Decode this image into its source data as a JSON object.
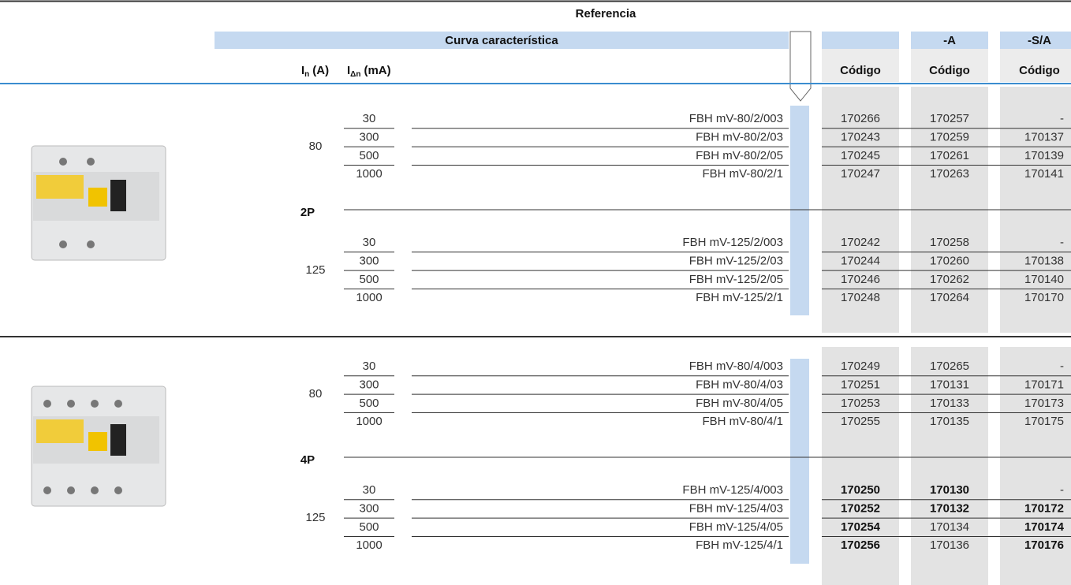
{
  "header": {
    "title": "Referencia",
    "curve": "Curva característica",
    "variants": [
      "-A",
      "-S/A"
    ],
    "in": {
      "symbol": "I",
      "sub": "n",
      "unit": "(A)"
    },
    "idn": {
      "symbol": "I",
      "sub": "Δn",
      "unit": "(mA)"
    },
    "code_labels": [
      "Código",
      "Código",
      "Código"
    ]
  },
  "sections": [
    {
      "poles": "2P",
      "groups": [
        {
          "in": "80",
          "rows": [
            {
              "ma": "30",
              "ref": "FBH mV-80/2/003",
              "codes": [
                "170266",
                "170257",
                "-"
              ]
            },
            {
              "ma": "300",
              "ref": "FBH mV-80/2/03",
              "codes": [
                "170243",
                "170259",
                "170137"
              ]
            },
            {
              "ma": "500",
              "ref": "FBH mV-80/2/05",
              "codes": [
                "170245",
                "170261",
                "170139"
              ]
            },
            {
              "ma": "1000",
              "ref": "FBH mV-80/2/1",
              "codes": [
                "170247",
                "170263",
                "170141"
              ]
            }
          ]
        },
        {
          "in": "125",
          "rows": [
            {
              "ma": "30",
              "ref": "FBH mV-125/2/003",
              "codes": [
                "170242",
                "170258",
                "-"
              ]
            },
            {
              "ma": "300",
              "ref": "FBH mV-125/2/03",
              "codes": [
                "170244",
                "170260",
                "170138"
              ]
            },
            {
              "ma": "500",
              "ref": "FBH mV-125/2/05",
              "codes": [
                "170246",
                "170262",
                "170140"
              ]
            },
            {
              "ma": "1000",
              "ref": "FBH mV-125/2/1",
              "codes": [
                "170248",
                "170264",
                "170170"
              ]
            }
          ]
        }
      ]
    },
    {
      "poles": "4P",
      "groups": [
        {
          "in": "80",
          "rows": [
            {
              "ma": "30",
              "ref": "FBH mV-80/4/003",
              "codes": [
                "170249",
                "170265",
                "-"
              ]
            },
            {
              "ma": "300",
              "ref": "FBH mV-80/4/03",
              "codes": [
                "170251",
                "170131",
                "170171"
              ]
            },
            {
              "ma": "500",
              "ref": "FBH mV-80/4/05",
              "codes": [
                "170253",
                "170133",
                "170173"
              ]
            },
            {
              "ma": "1000",
              "ref": "FBH mV-80/4/1",
              "codes": [
                "170255",
                "170135",
                "170175"
              ]
            }
          ]
        },
        {
          "in": "125",
          "rows": [
            {
              "ma": "30",
              "ref": "FBH mV-125/4/003",
              "codes": [
                "170250",
                "170130",
                "-"
              ],
              "bold": [
                true,
                true,
                false
              ]
            },
            {
              "ma": "300",
              "ref": "FBH mV-125/4/03",
              "codes": [
                "170252",
                "170132",
                "170172"
              ],
              "bold": [
                true,
                true,
                true
              ]
            },
            {
              "ma": "500",
              "ref": "FBH mV-125/4/05",
              "codes": [
                "170254",
                "170134",
                "170174"
              ],
              "bold": [
                true,
                false,
                true
              ]
            },
            {
              "ma": "1000",
              "ref": "FBH mV-125/4/1",
              "codes": [
                "170256",
                "170136",
                "170176"
              ],
              "bold": [
                true,
                false,
                true
              ]
            }
          ]
        }
      ]
    }
  ]
}
